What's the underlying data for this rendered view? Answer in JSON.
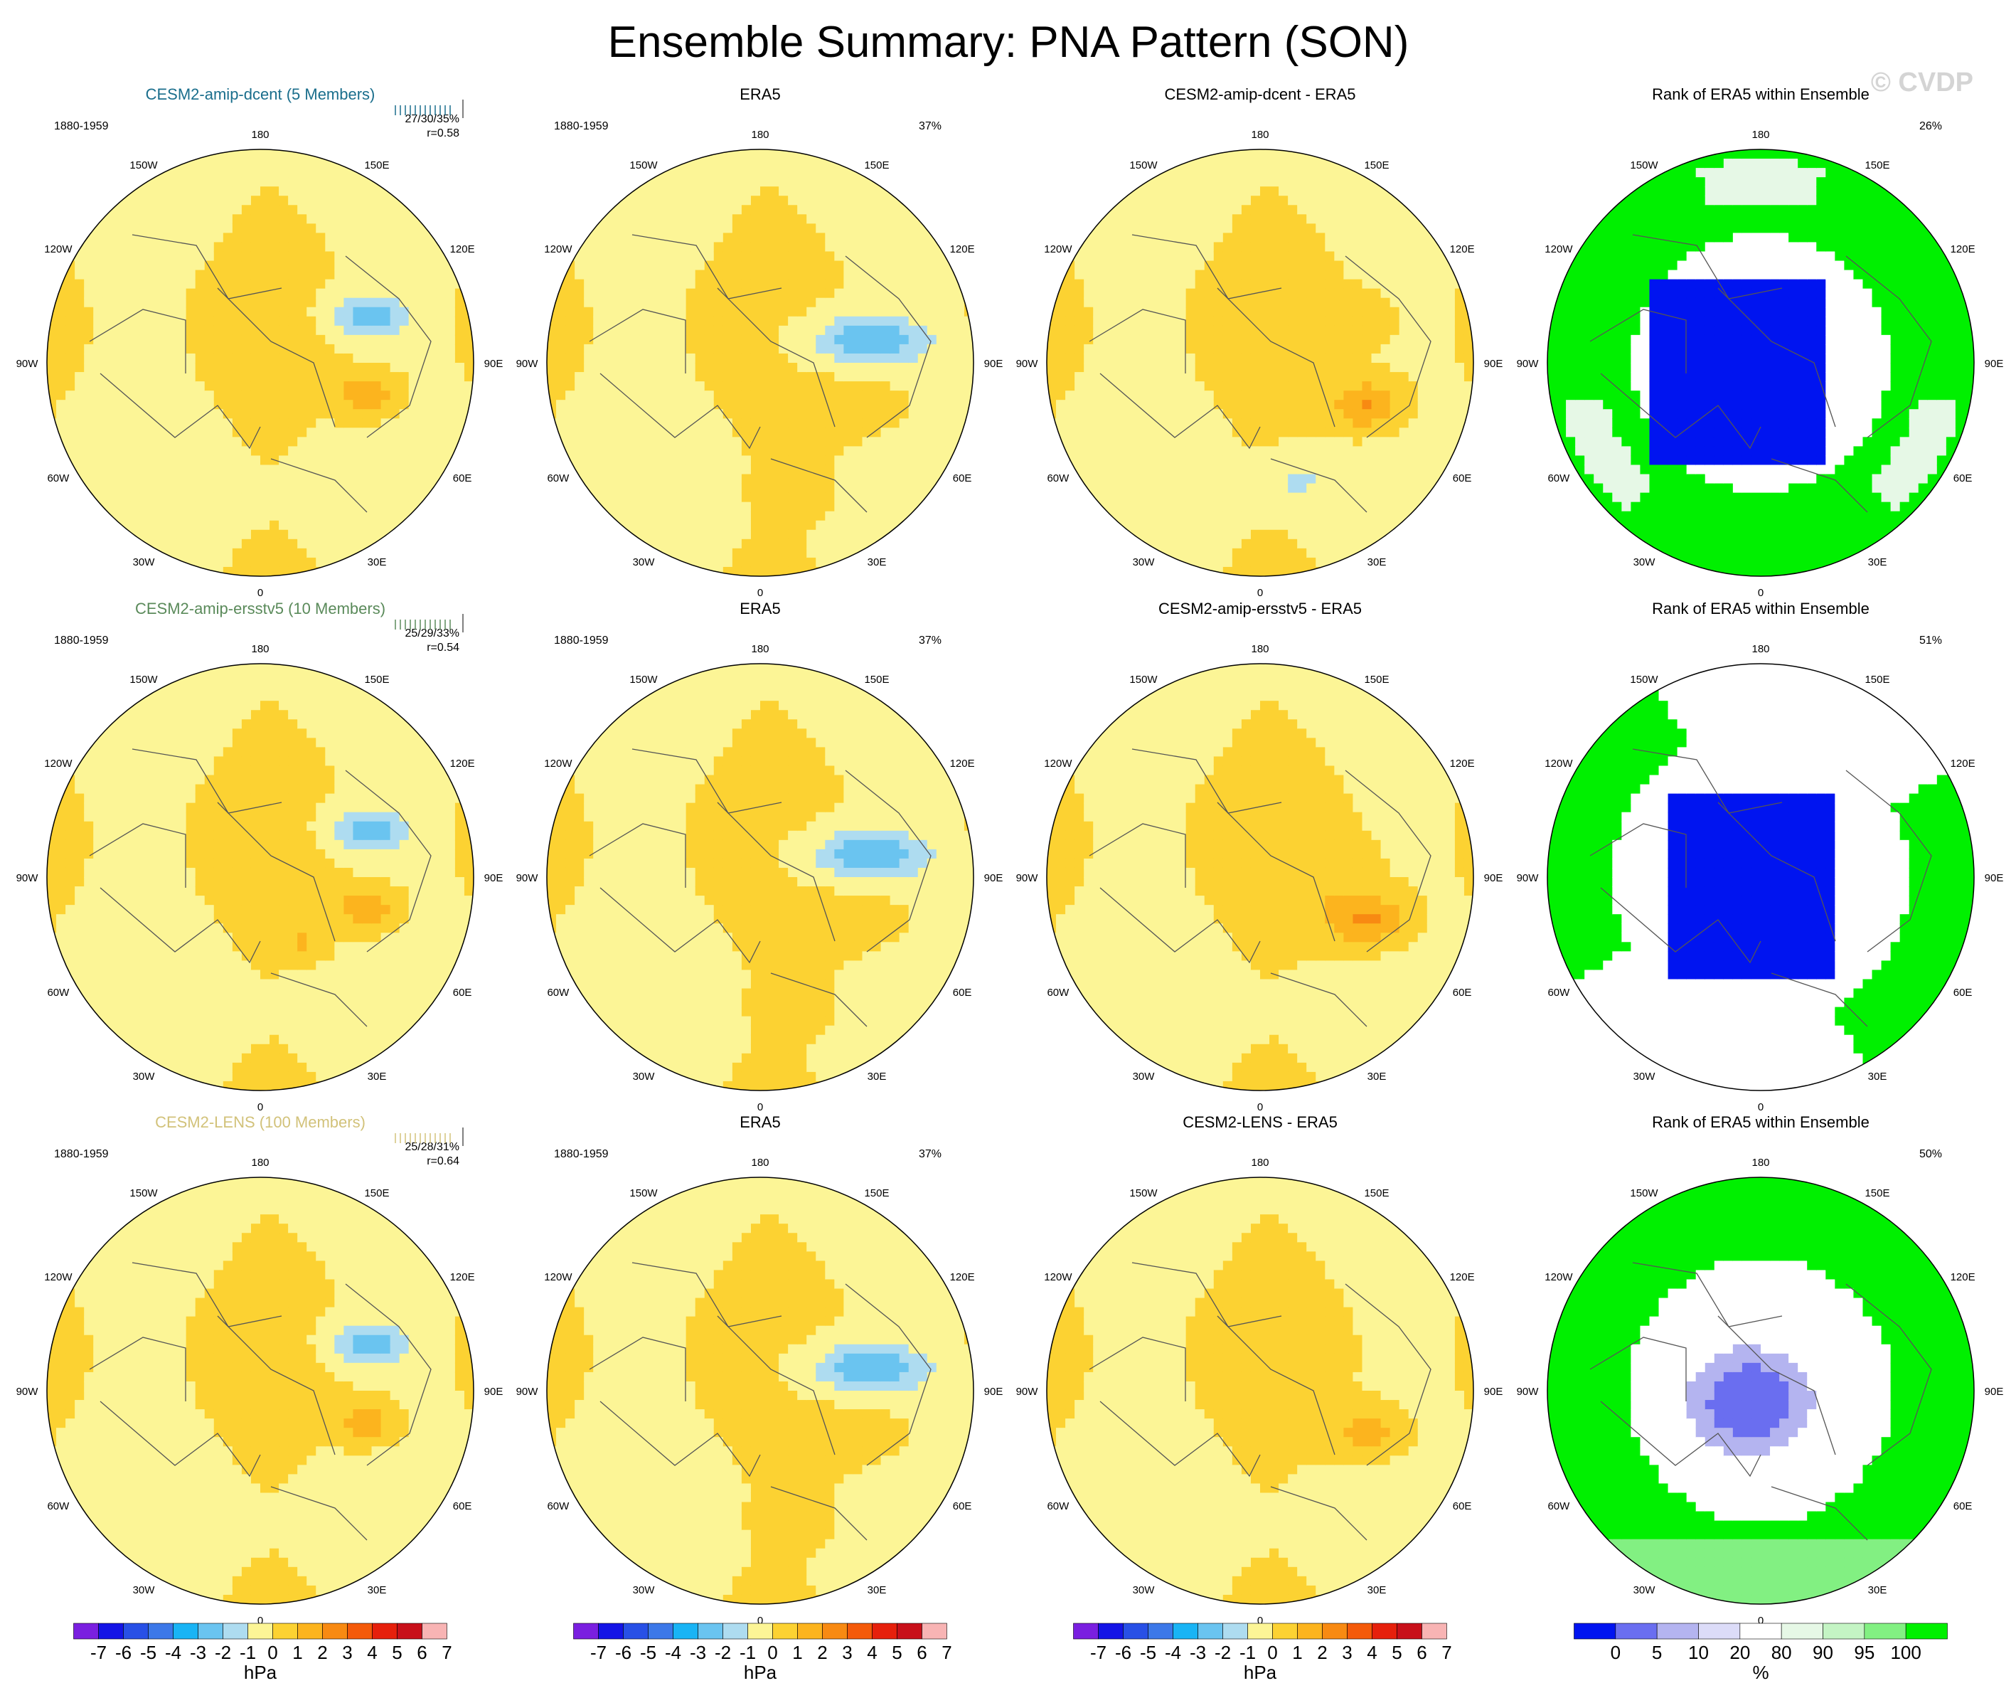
{
  "page": {
    "title": "Ensemble Summary: PNA Pattern (SON)",
    "watermark": "© CVDP"
  },
  "colors": {
    "diff": [
      "#7a1fe0",
      "#1414e6",
      "#2850e6",
      "#3c78e8",
      "#19b4f5",
      "#6ac4f0",
      "#aedcf0",
      "#fcf596",
      "#fcd232",
      "#fcb41e",
      "#f88a12",
      "#f45a0a",
      "#e6200c",
      "#c8101a",
      "#f8b4b4"
    ],
    "rank": [
      "#0014f0",
      "#6a6ef0",
      "#b4b4f0",
      "#dcdcf8",
      "#ffffff",
      "#e6f8e6",
      "#c4f4c4",
      "#82f082",
      "#00f000"
    ]
  },
  "coastline_color": "#555555",
  "longitude_labels": [
    "180",
    "150E",
    "120E",
    "90E",
    "60E",
    "30E",
    "0",
    "30W",
    "60W",
    "90W",
    "120W",
    "150W"
  ],
  "colorbars": {
    "diff": {
      "ticks": [
        "-7",
        "-6",
        "-5",
        "-4",
        "-3",
        "-2",
        "-1",
        "0",
        "1",
        "2",
        "3",
        "4",
        "5",
        "6",
        "7"
      ],
      "unit": "hPa"
    },
    "rank": {
      "ticks": [
        "0",
        "5",
        "10",
        "20",
        "80",
        "90",
        "95",
        "100"
      ],
      "unit": "%"
    }
  },
  "rows": [
    {
      "model": {
        "title": "CESM2-amip-dcent (5 Members)",
        "title_color": "#1a6e8c",
        "period": "1880-1959",
        "pct": "27/30/35%",
        "r": "r=0.58",
        "lo": [
          [
            0.52,
            -0.22,
            0.17,
            0.1,
            -2.6
          ],
          [
            0.5,
            0.15,
            0.13,
            0.09,
            2.1
          ]
        ]
      },
      "obs": {
        "title": "ERA5",
        "period": "1880-1959",
        "pct": "37%",
        "lo": [
          [
            0.52,
            -0.1,
            0.27,
            0.12,
            -2.9
          ],
          [
            0.45,
            0.2,
            0.25,
            0.18,
            0.5
          ],
          [
            0.2,
            0.6,
            0.2,
            0.15,
            0.3
          ]
        ]
      },
      "diff": {
        "title": "CESM2-amip-dcent - ERA5",
        "pct": "",
        "lo": [
          [
            0.5,
            0.2,
            0.16,
            0.11,
            2.2
          ],
          [
            0.4,
            -0.2,
            0.18,
            0.1,
            0.7
          ],
          [
            0.18,
            0.55,
            0.12,
            0.1,
            -1.2
          ]
        ]
      },
      "rank": {
        "title": "Rank of ERA5 within Ensemble",
        "pct": "26%"
      }
    },
    {
      "model": {
        "title": "CESM2-amip-ersstv5 (10 Members)",
        "title_color": "#5a8a5a",
        "period": "1880-1959",
        "pct": "25/29/33%",
        "r": "r=0.54",
        "lo": [
          [
            0.52,
            -0.22,
            0.17,
            0.1,
            -2.5
          ],
          [
            0.5,
            0.15,
            0.13,
            0.09,
            2.0
          ],
          [
            0.2,
            0.3,
            0.1,
            0.07,
            1.2
          ]
        ]
      },
      "obs": {
        "title": "ERA5",
        "period": "1880-1959",
        "pct": "37%",
        "lo": [
          [
            0.52,
            -0.1,
            0.27,
            0.12,
            -2.9
          ],
          [
            0.45,
            0.2,
            0.25,
            0.18,
            0.5
          ],
          [
            0.2,
            0.6,
            0.2,
            0.15,
            0.3
          ]
        ]
      },
      "diff": {
        "title": "CESM2-amip-ersstv5 - ERA5",
        "pct": "",
        "lo": [
          [
            0.5,
            0.2,
            0.18,
            0.12,
            2.3
          ],
          [
            0.3,
            0.0,
            0.2,
            0.15,
            0.8
          ]
        ]
      },
      "rank": {
        "title": "Rank of ERA5 within Ensemble",
        "pct": "51%"
      }
    },
    {
      "model": {
        "title": "CESM2-LENS (100 Members)",
        "title_color": "#d2c27a",
        "period": "1880-1959",
        "pct": "25/28/31%",
        "r": "r=0.64",
        "lo": [
          [
            0.52,
            -0.22,
            0.17,
            0.1,
            -2.6
          ],
          [
            0.5,
            0.15,
            0.13,
            0.09,
            1.8
          ]
        ]
      },
      "obs": {
        "title": "ERA5",
        "period": "1880-1959",
        "pct": "37%",
        "lo": [
          [
            0.52,
            -0.1,
            0.27,
            0.12,
            -2.9
          ],
          [
            0.45,
            0.2,
            0.25,
            0.18,
            0.5
          ],
          [
            0.2,
            0.6,
            0.2,
            0.15,
            0.3
          ]
        ]
      },
      "diff": {
        "title": "CESM2-LENS - ERA5",
        "pct": "",
        "lo": [
          [
            0.5,
            0.2,
            0.16,
            0.11,
            1.6
          ]
        ]
      },
      "rank": {
        "title": "Rank of ERA5 within Ensemble",
        "pct": "50%"
      }
    }
  ]
}
